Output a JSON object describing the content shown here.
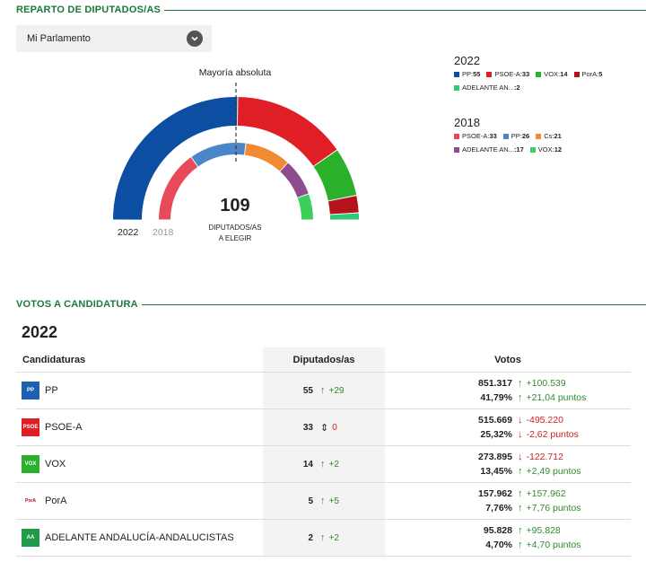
{
  "seats_section": {
    "title": "REPARTO DE DIPUTADOS/AS",
    "dropdown_label": "Mi Parlamento",
    "majority_label": "Mayoría absoluta",
    "total_seats": "109",
    "total_caption_1": "DIPUTADOS/AS",
    "total_caption_2": "A ELEGIR",
    "year_current": "2022",
    "year_previous": "2018"
  },
  "legend_2022": {
    "year": "2022",
    "items": [
      {
        "name": "PP:",
        "count": "55",
        "color": "#0b4ea2"
      },
      {
        "name": "PSOE-A:",
        "count": "33",
        "color": "#e01e26"
      },
      {
        "name": "VOX:",
        "count": "14",
        "color": "#2bb02b"
      },
      {
        "name": "PorA:",
        "count": "5",
        "color": "#b5121b"
      },
      {
        "name": "ADELANTE AN...",
        "count": ":2",
        "color": "#2dc87a"
      }
    ]
  },
  "legend_2018": {
    "year": "2018",
    "items": [
      {
        "name": "PSOE-A:",
        "count": "33",
        "color": "#e84a5a"
      },
      {
        "name": "PP:",
        "count": "26",
        "color": "#4a86c8"
      },
      {
        "name": "Cs:",
        "count": "21",
        "color": "#f08a33"
      },
      {
        "name": "ADELANTE AN...",
        "count": ":17",
        "color": "#8e4b8f"
      },
      {
        "name": "VOX:",
        "count": "12",
        "color": "#3ccf5a"
      }
    ]
  },
  "chart_data": {
    "type": "pie",
    "title": "",
    "series": [
      {
        "name": "2022",
        "categories": [
          "PP",
          "PSOE-A",
          "VOX",
          "PorA",
          "ADELANTE AN..."
        ],
        "values": [
          55,
          33,
          14,
          5,
          2
        ],
        "colors": [
          "#0b4ea2",
          "#e01e26",
          "#2bb02b",
          "#b5121b",
          "#2dc87a"
        ]
      },
      {
        "name": "2018",
        "categories": [
          "PSOE-A",
          "PP",
          "Cs",
          "ADELANTE AN...",
          "VOX"
        ],
        "values": [
          33,
          26,
          21,
          17,
          12
        ],
        "colors": [
          "#e84a5a",
          "#4a86c8",
          "#f08a33",
          "#8e4b8f",
          "#3ccf5a"
        ]
      }
    ],
    "total": 109
  },
  "votes_section": {
    "title": "VOTOS A CANDIDATURA",
    "year": "2022",
    "col_parties": "Candidaturas",
    "col_seats": "Diputados/as",
    "col_votes": "Votos",
    "rows": [
      {
        "party": "PP",
        "logo_text": "PP",
        "logo_color": "#1d5fb0",
        "seats": "55",
        "seat_diff": "+29",
        "seat_dir": "up",
        "votes": "851.317",
        "votes_diff": "+100.539",
        "votes_dir": "up",
        "pct": "41,79%",
        "pct_diff": "+21,04 puntos",
        "pct_dir": "up"
      },
      {
        "party": "PSOE-A",
        "logo_text": "PSOE",
        "logo_color": "#e01e26",
        "seats": "33",
        "seat_diff": "0",
        "seat_dir": "same",
        "votes": "515.669",
        "votes_diff": "-495.220",
        "votes_dir": "down",
        "pct": "25,32%",
        "pct_diff": "-2,62 puntos",
        "pct_dir": "down"
      },
      {
        "party": "VOX",
        "logo_text": "VOX",
        "logo_color": "#2bb02b",
        "seats": "14",
        "seat_diff": "+2",
        "seat_dir": "up",
        "votes": "273.895",
        "votes_diff": "-122.712",
        "votes_dir": "down",
        "pct": "13,45%",
        "pct_diff": "+2,49 puntos",
        "pct_dir": "up"
      },
      {
        "party": "PorA",
        "logo_text": "PorA",
        "logo_color": "#ffffff",
        "seats": "5",
        "seat_diff": "+5",
        "seat_dir": "up",
        "votes": "157.962",
        "votes_diff": "+157.962",
        "votes_dir": "up",
        "pct": "7,76%",
        "pct_diff": "+7,76 puntos",
        "pct_dir": "up"
      },
      {
        "party": "ADELANTE ANDALUCÍA-ANDALUCISTAS",
        "logo_text": "AA",
        "logo_color": "#1f9b4a",
        "seats": "2",
        "seat_diff": "+2",
        "seat_dir": "up",
        "votes": "95.828",
        "votes_diff": "+95.828",
        "votes_dir": "up",
        "pct": "4,70%",
        "pct_diff": "+4,70 puntos",
        "pct_dir": "up"
      }
    ]
  }
}
